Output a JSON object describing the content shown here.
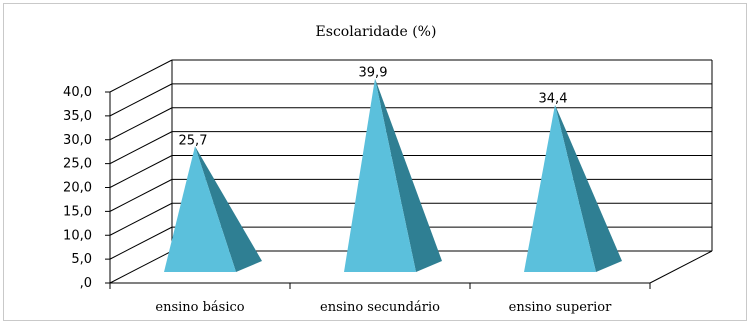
{
  "chart_data": {
    "type": "bar",
    "subtype": "3d-pyramid",
    "title": "Escolaridade (%)",
    "categories": [
      "ensino básico",
      "ensino secundário",
      "ensino superior"
    ],
    "values": [
      25.7,
      39.9,
      34.4
    ],
    "value_labels": [
      "25,7",
      "39,9",
      "34,4"
    ],
    "ylim": [
      0,
      40
    ],
    "yticks": [
      ",0",
      "5,0",
      "10,0",
      "15,0",
      "20,0",
      "25,0",
      "30,0",
      "35,0",
      "40,0"
    ],
    "xlabel": "",
    "ylabel": "",
    "grid": true,
    "legend": "none",
    "colors": {
      "front": "#5bc0dc",
      "side": "#2f7f93",
      "grid": "#000000"
    }
  }
}
